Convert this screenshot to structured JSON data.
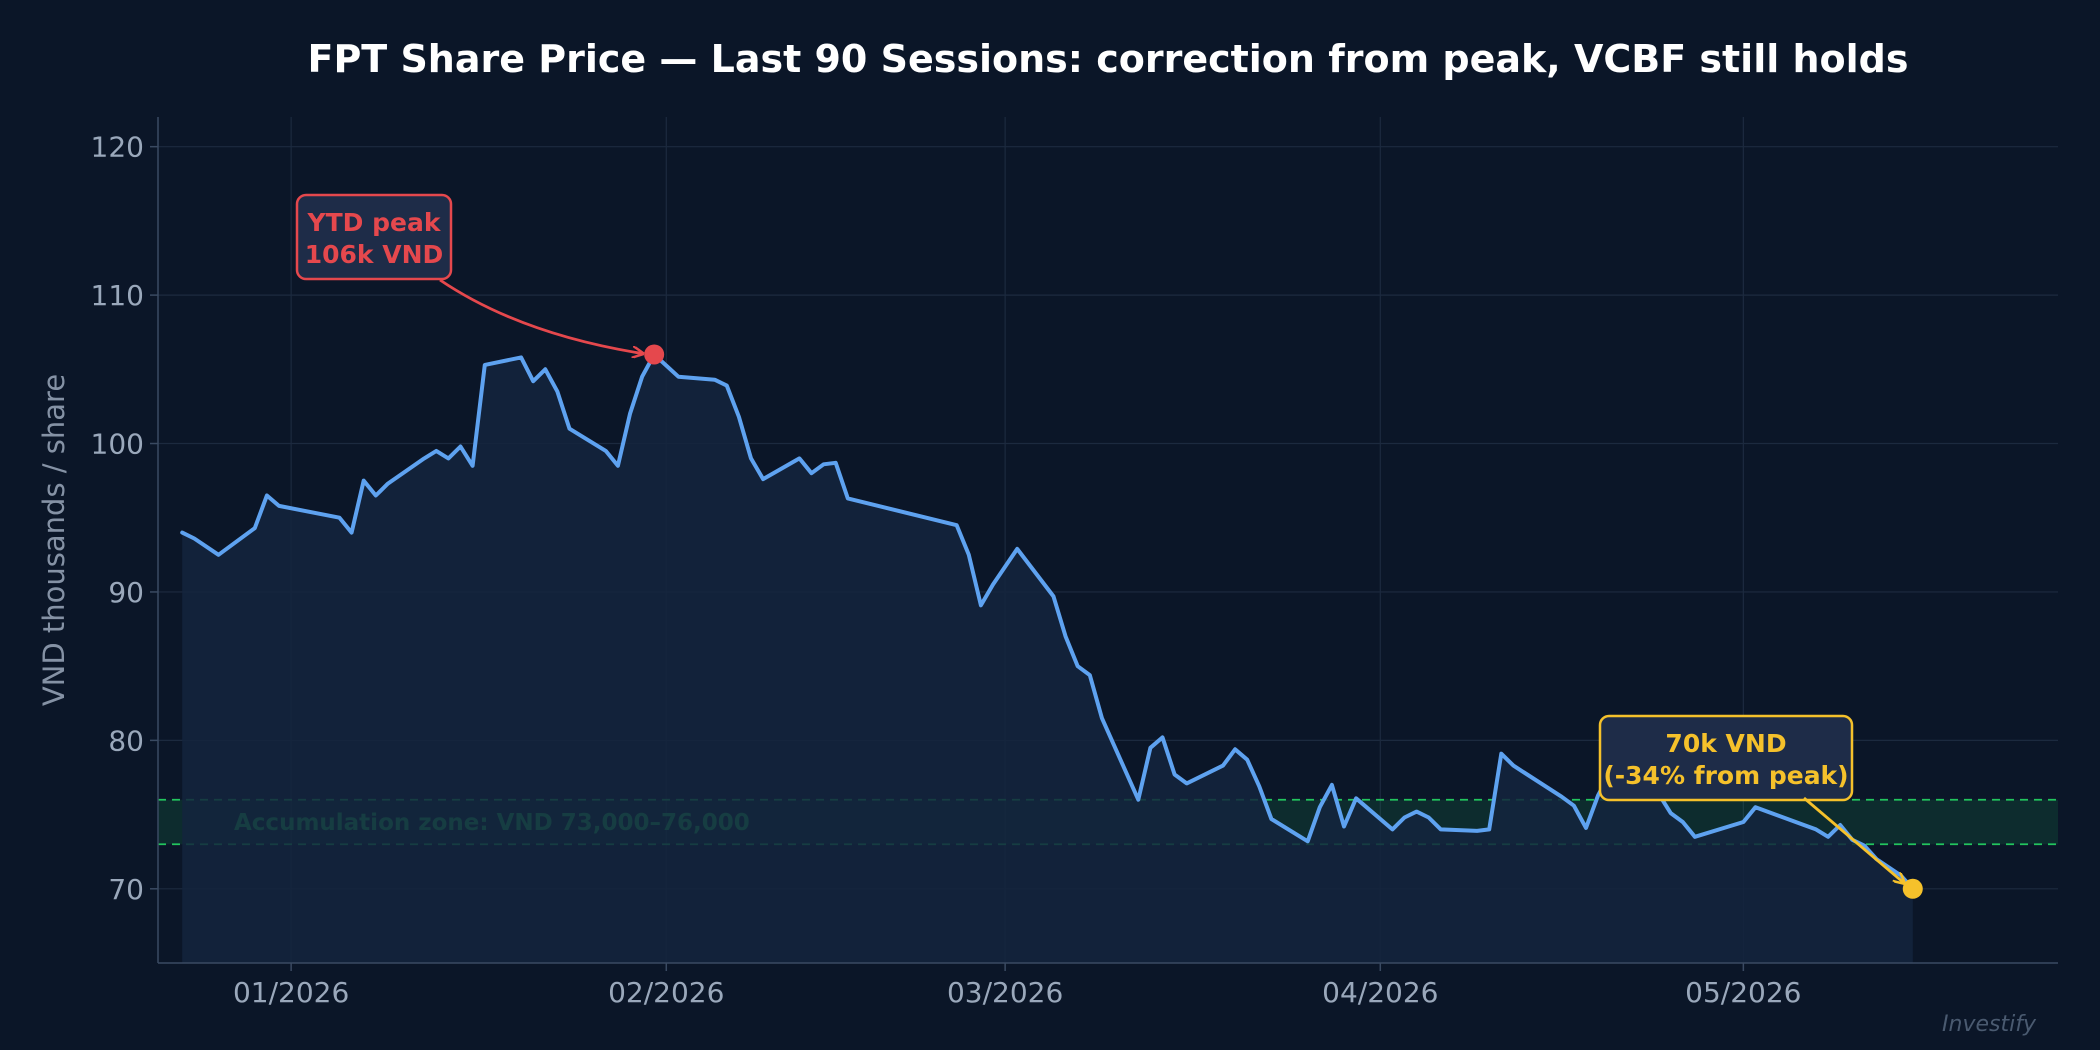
{
  "chart_data": {
    "type": "line",
    "title": "FPT Share Price — Last 90 Sessions: correction from peak, VCBF still holds",
    "xlabel": "",
    "ylabel": "VND thousands / share",
    "ylim": [
      65,
      122
    ],
    "xlim": [
      "2025-12-21",
      "2026-05-27"
    ],
    "x_ticks": [
      "2026-01-01",
      "2026-02-01",
      "2026-03-01",
      "2026-04-01",
      "2026-05-01"
    ],
    "x_tick_labels": [
      "01/2026",
      "02/2026",
      "03/2026",
      "04/2026",
      "05/2026"
    ],
    "y_ticks": [
      70,
      80,
      90,
      100,
      110,
      120
    ],
    "grid": true,
    "legend": "none",
    "colors": {
      "background": "#0b1628",
      "plot_background": "#0b1628",
      "line": "#5ea2f0",
      "area_fill": "#14243d",
      "grid": "#1c2a3f",
      "axis": "#3a4a62",
      "peak": "#e5484d",
      "current": "#f5c12b",
      "zone": "#22c55e",
      "note_box_fill": "#1e2c48"
    },
    "series": [
      {
        "name": "",
        "points": [
          [
            "2025-12-23",
            94.0
          ],
          [
            "2025-12-24",
            93.6
          ],
          [
            "2025-12-26",
            92.5
          ],
          [
            "2025-12-29",
            94.3
          ],
          [
            "2025-12-30",
            96.5
          ],
          [
            "2025-12-31",
            95.8
          ],
          [
            "2026-01-05",
            95.0
          ],
          [
            "2026-01-06",
            94.0
          ],
          [
            "2026-01-07",
            97.5
          ],
          [
            "2026-01-08",
            96.5
          ],
          [
            "2026-01-09",
            97.3
          ],
          [
            "2026-01-12",
            99.0
          ],
          [
            "2026-01-13",
            99.5
          ],
          [
            "2026-01-14",
            99.0
          ],
          [
            "2026-01-15",
            99.8
          ],
          [
            "2026-01-16",
            98.5
          ],
          [
            "2026-01-17",
            105.3
          ],
          [
            "2026-01-20",
            105.8
          ],
          [
            "2026-01-21",
            104.2
          ],
          [
            "2026-01-22",
            105.0
          ],
          [
            "2026-01-23",
            103.5
          ],
          [
            "2026-01-24",
            101.0
          ],
          [
            "2026-01-27",
            99.5
          ],
          [
            "2026-01-28",
            98.5
          ],
          [
            "2026-01-29",
            102.0
          ],
          [
            "2026-01-30",
            104.5
          ],
          [
            "2026-01-31",
            106.0
          ],
          [
            "2026-02-02",
            104.5
          ],
          [
            "2026-02-05",
            104.3
          ],
          [
            "2026-02-06",
            103.9
          ],
          [
            "2026-02-07",
            101.8
          ],
          [
            "2026-02-08",
            99.0
          ],
          [
            "2026-02-09",
            97.6
          ],
          [
            "2026-02-12",
            99.0
          ],
          [
            "2026-02-13",
            98.0
          ],
          [
            "2026-02-14",
            98.6
          ],
          [
            "2026-02-15",
            98.7
          ],
          [
            "2026-02-16",
            96.3
          ],
          [
            "2026-02-25",
            94.5
          ],
          [
            "2026-02-26",
            92.5
          ],
          [
            "2026-02-27",
            89.1
          ],
          [
            "2026-02-28",
            90.5
          ],
          [
            "2026-03-02",
            92.9
          ],
          [
            "2026-03-05",
            89.7
          ],
          [
            "2026-03-06",
            87.0
          ],
          [
            "2026-03-07",
            85.0
          ],
          [
            "2026-03-08",
            84.4
          ],
          [
            "2026-03-09",
            81.5
          ],
          [
            "2026-03-12",
            76.0
          ],
          [
            "2026-03-13",
            79.5
          ],
          [
            "2026-03-14",
            80.2
          ],
          [
            "2026-03-15",
            77.7
          ],
          [
            "2026-03-16",
            77.1
          ],
          [
            "2026-03-19",
            78.3
          ],
          [
            "2026-03-20",
            79.4
          ],
          [
            "2026-03-21",
            78.7
          ],
          [
            "2026-03-22",
            76.9
          ],
          [
            "2026-03-23",
            74.7
          ],
          [
            "2026-03-26",
            73.2
          ],
          [
            "2026-03-27",
            75.5
          ],
          [
            "2026-03-28",
            77.0
          ],
          [
            "2026-03-29",
            74.2
          ],
          [
            "2026-03-30",
            76.1
          ],
          [
            "2026-04-02",
            74.0
          ],
          [
            "2026-04-03",
            74.8
          ],
          [
            "2026-04-04",
            75.2
          ],
          [
            "2026-04-05",
            74.8
          ],
          [
            "2026-04-06",
            74.0
          ],
          [
            "2026-04-09",
            73.9
          ],
          [
            "2026-04-10",
            74.0
          ],
          [
            "2026-04-11",
            79.1
          ],
          [
            "2026-04-12",
            78.3
          ],
          [
            "2026-04-16",
            76.2
          ],
          [
            "2026-04-17",
            75.6
          ],
          [
            "2026-04-18",
            74.1
          ],
          [
            "2026-04-19",
            76.3
          ],
          [
            "2026-04-20",
            77.8
          ],
          [
            "2026-04-23",
            78.0
          ],
          [
            "2026-04-24",
            76.4
          ],
          [
            "2026-04-25",
            75.1
          ],
          [
            "2026-04-26",
            74.5
          ],
          [
            "2026-04-27",
            73.5
          ],
          [
            "2026-05-01",
            74.5
          ],
          [
            "2026-05-02",
            75.5
          ],
          [
            "2026-05-06",
            74.3
          ],
          [
            "2026-05-07",
            74.0
          ],
          [
            "2026-05-08",
            73.5
          ],
          [
            "2026-05-09",
            74.3
          ],
          [
            "2026-05-10",
            73.3
          ],
          [
            "2026-05-11",
            72.9
          ],
          [
            "2026-05-12",
            72.0
          ],
          [
            "2026-05-14",
            70.9
          ],
          [
            "2026-05-15",
            70.0
          ]
        ]
      }
    ],
    "accumulation_zone": {
      "low": 73,
      "high": 76,
      "label": "Accumulation zone: VND 73,000–76,000"
    },
    "annotations": [
      {
        "id": "peak",
        "lines": [
          "YTD peak",
          "106k VND"
        ],
        "x": "2026-01-31",
        "y": 106.0,
        "color": "#e5484d"
      },
      {
        "id": "current",
        "lines": [
          "70k VND",
          "(-34% from peak)"
        ],
        "x": "2026-05-15",
        "y": 70.0,
        "color": "#f5c12b"
      }
    ]
  },
  "watermark": "Investify"
}
